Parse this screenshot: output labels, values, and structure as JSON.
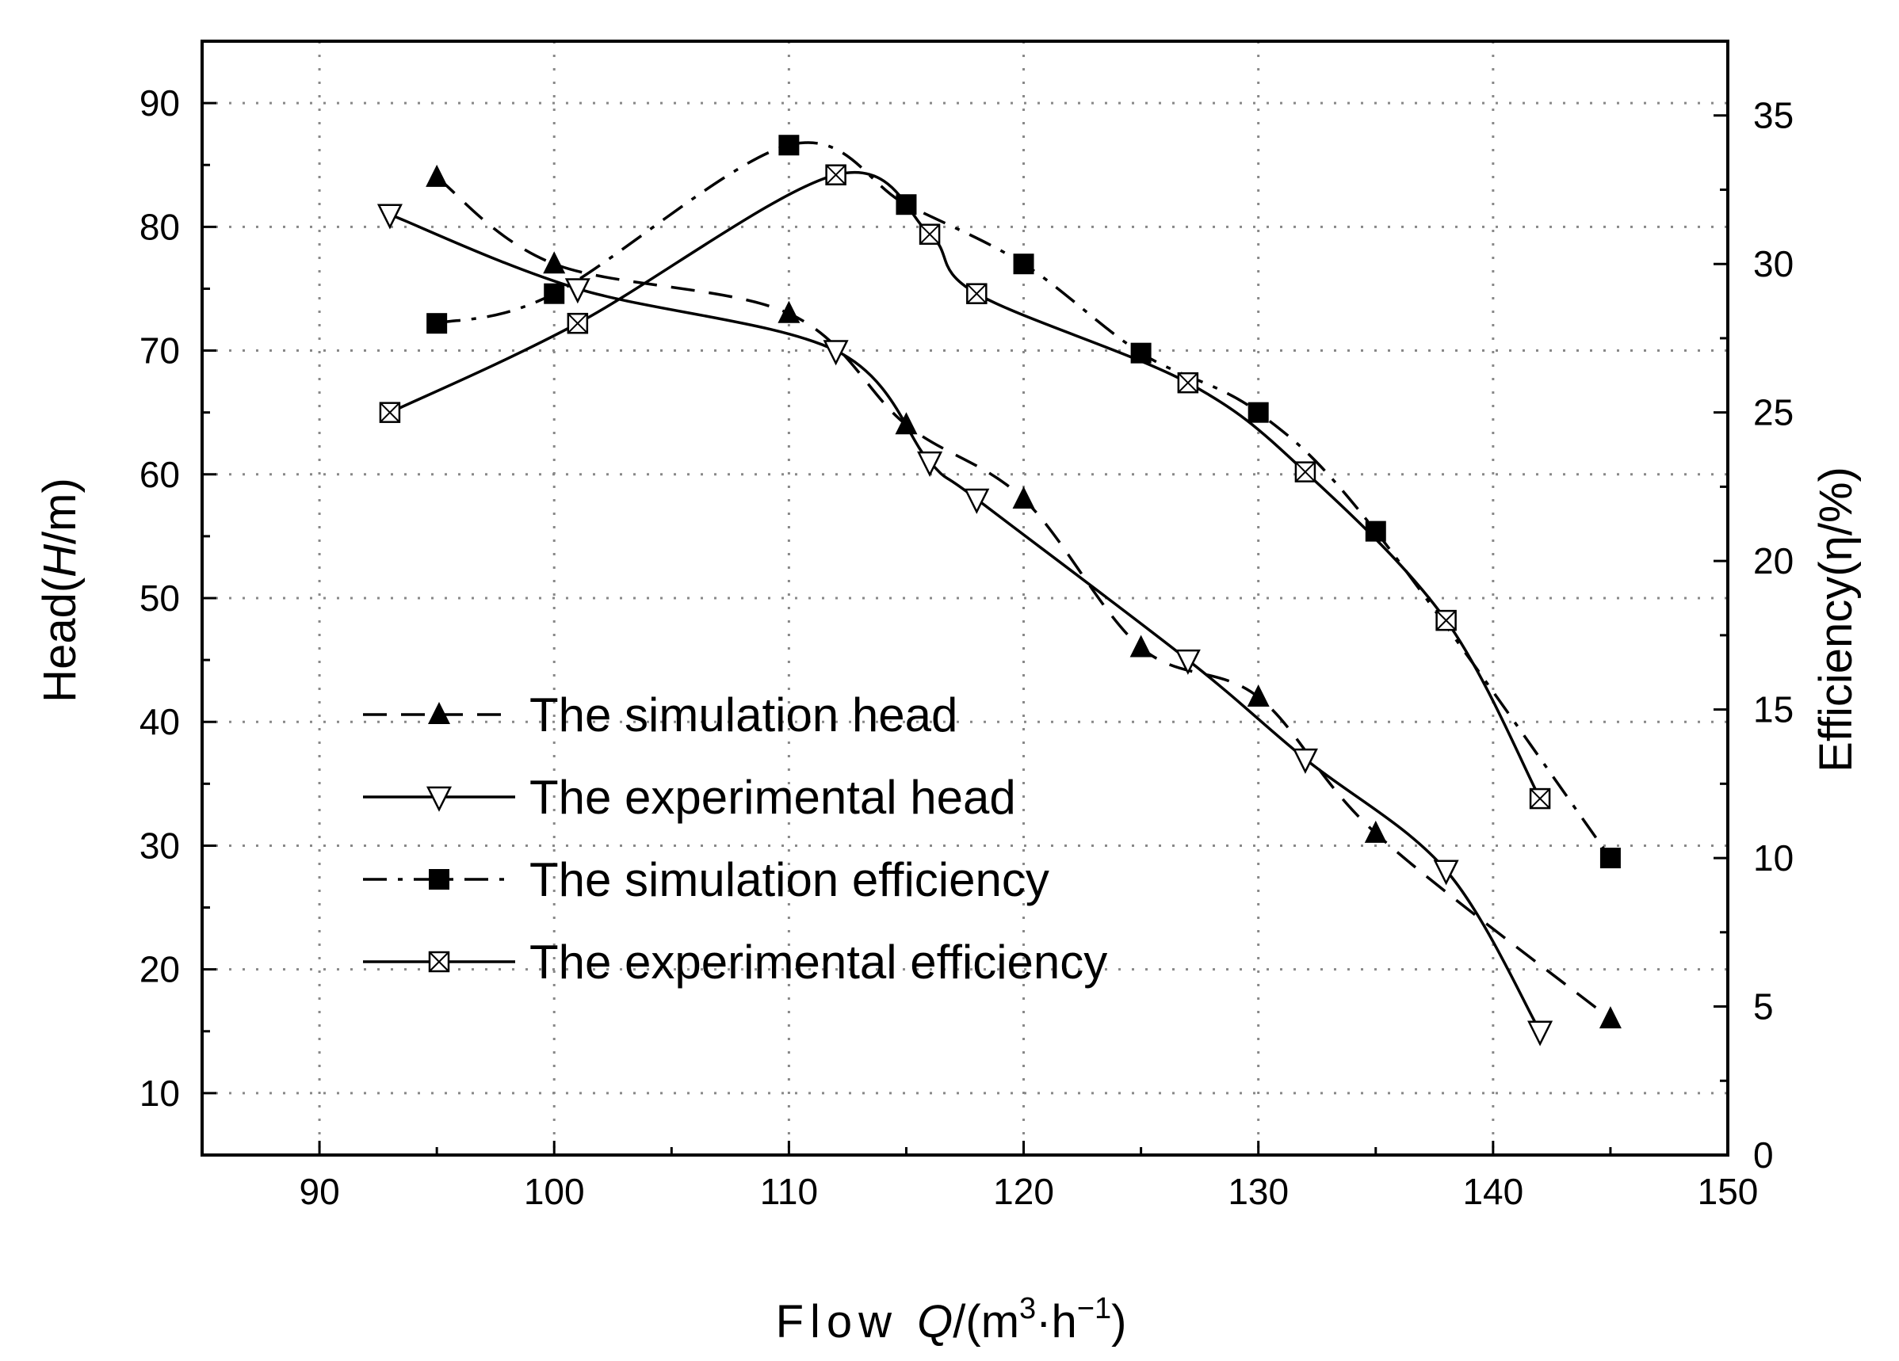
{
  "chart_data": {
    "type": "line",
    "title": "",
    "xlabel": {
      "prefix": "Flow ",
      "var": "Q",
      "unit": "/(m",
      "sup1": "3",
      "mid": "·h",
      "sup2": "−1",
      "close": ")"
    },
    "ylabel_left": {
      "prefix": "Head(",
      "var": "H",
      "suffix": "/m)"
    },
    "ylabel_right": "Efficiency(η/%)",
    "xlim": [
      85,
      150
    ],
    "ylim_left": [
      5,
      95
    ],
    "ylim_right": [
      0,
      37.5
    ],
    "xticks": [
      90,
      100,
      110,
      120,
      130,
      140,
      150
    ],
    "xtick_labels": [
      "90",
      "100",
      "110",
      "120",
      "130",
      "140",
      "150"
    ],
    "yticks_left": [
      10,
      20,
      30,
      40,
      50,
      60,
      70,
      80,
      90
    ],
    "ytick_labels_left": [
      "10",
      "20",
      "30",
      "40",
      "50",
      "60",
      "70",
      "80",
      "90"
    ],
    "yticks_right": [
      0,
      5,
      10,
      15,
      20,
      25,
      30,
      35
    ],
    "ytick_labels_right": [
      "0",
      "5",
      "10",
      "15",
      "20",
      "25",
      "30",
      "35"
    ],
    "grid": true,
    "legend_position": "lower-left",
    "series": [
      {
        "name": "The simulation head",
        "axis": "left",
        "marker": "filled-triangle-up",
        "line": "dashed",
        "x": [
          95,
          100,
          110,
          115,
          120,
          125,
          130,
          135,
          145
        ],
        "y": [
          84,
          77,
          73,
          64,
          58,
          46,
          42,
          31,
          16
        ]
      },
      {
        "name": "The experimental head",
        "axis": "left",
        "marker": "open-triangle-down",
        "line": "solid",
        "x": [
          93,
          101,
          112,
          116,
          118,
          127,
          132,
          138,
          142
        ],
        "y": [
          81,
          75,
          70,
          61,
          58,
          45,
          37,
          28,
          15
        ]
      },
      {
        "name": "The simulation efficiency",
        "axis": "right",
        "marker": "filled-square",
        "line": "dash-dot",
        "x": [
          95,
          100,
          110,
          115,
          120,
          125,
          130,
          135,
          145
        ],
        "y": [
          28,
          29,
          34,
          32,
          30,
          27,
          25,
          21,
          10
        ]
      },
      {
        "name": "The experimental efficiency",
        "axis": "right",
        "marker": "crossed-square",
        "line": "solid",
        "x": [
          93,
          101,
          112,
          116,
          118,
          127,
          132,
          138,
          142
        ],
        "y": [
          25,
          28,
          33,
          31,
          29,
          26,
          23,
          18,
          12
        ]
      }
    ]
  }
}
